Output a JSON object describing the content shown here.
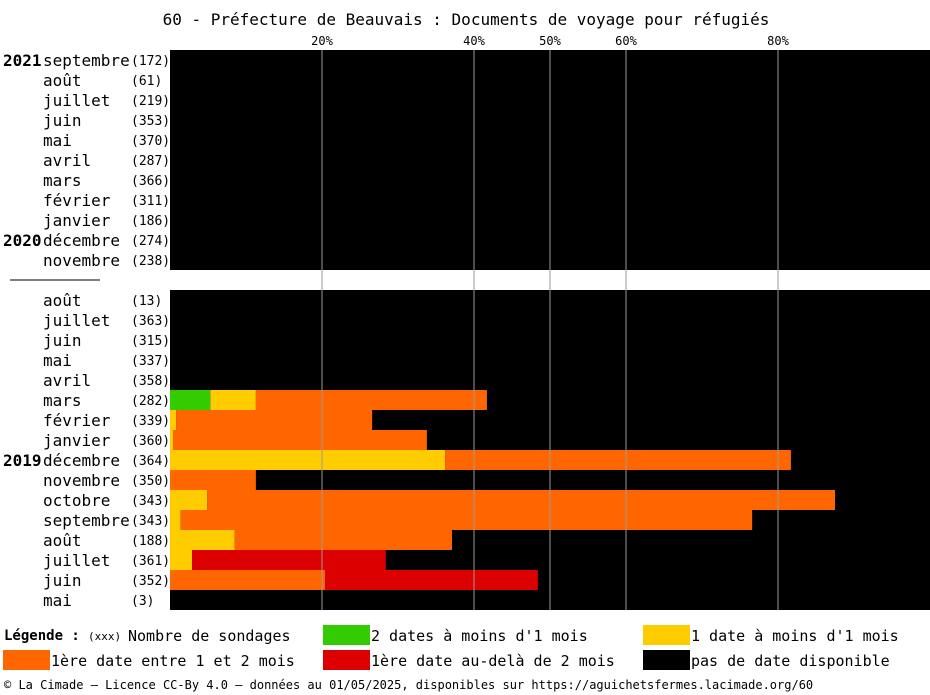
{
  "chart_data": {
    "type": "bar",
    "orientation": "horizontal",
    "stacked": true,
    "title": "60 - Préfecture de Beauvais : Documents de voyage pour réfugiés",
    "x_ticks": [
      "20%",
      "40%",
      "50%",
      "60%",
      "80%"
    ],
    "x_tick_values": [
      20,
      40,
      50,
      60,
      80
    ],
    "xlim": [
      0,
      100
    ],
    "grid": true,
    "colors": {
      "green": "#33cc00",
      "yellow": "#ffcc00",
      "orange": "#ff6600",
      "red": "#dd0000",
      "black": "#000000"
    },
    "groups": [
      {
        "year_label": "2021",
        "rows": [
          {
            "month": "septembre",
            "count": "(172)",
            "year": "2021",
            "segments": {
              "green": 0,
              "yellow": 0,
              "orange": 0,
              "red": 0
            }
          },
          {
            "month": "août",
            "count": "(61)",
            "year": "",
            "segments": {
              "green": 0,
              "yellow": 0,
              "orange": 0,
              "red": 0
            }
          },
          {
            "month": "juillet",
            "count": "(219)",
            "year": "",
            "segments": {
              "green": 0,
              "yellow": 0,
              "orange": 0,
              "red": 0
            }
          },
          {
            "month": "juin",
            "count": "(353)",
            "year": "",
            "segments": {
              "green": 0,
              "yellow": 0,
              "orange": 0,
              "red": 0
            }
          },
          {
            "month": "mai",
            "count": "(370)",
            "year": "",
            "segments": {
              "green": 0,
              "yellow": 0,
              "orange": 0,
              "red": 0
            }
          },
          {
            "month": "avril",
            "count": "(287)",
            "year": "",
            "segments": {
              "green": 0,
              "yellow": 0,
              "orange": 0,
              "red": 0
            }
          },
          {
            "month": "mars",
            "count": "(366)",
            "year": "",
            "segments": {
              "green": 0,
              "yellow": 0,
              "orange": 0,
              "red": 0
            }
          },
          {
            "month": "février",
            "count": "(311)",
            "year": "",
            "segments": {
              "green": 0,
              "yellow": 0,
              "orange": 0,
              "red": 0
            }
          },
          {
            "month": "janvier",
            "count": "(186)",
            "year": "",
            "segments": {
              "green": 0,
              "yellow": 0,
              "orange": 0,
              "red": 0
            }
          },
          {
            "month": "décembre",
            "count": "(274)",
            "year": "2020",
            "segments": {
              "green": 0,
              "yellow": 0,
              "orange": 0,
              "red": 0
            }
          },
          {
            "month": "novembre",
            "count": "(238)",
            "year": "",
            "segments": {
              "green": 0,
              "yellow": 0,
              "orange": 0,
              "red": 0
            }
          }
        ]
      },
      {
        "year_label": "",
        "rows": [
          {
            "month": "août",
            "count": "(13)",
            "year": "",
            "segments": {
              "green": 0,
              "yellow": 0,
              "orange": 0,
              "red": 0
            }
          },
          {
            "month": "juillet",
            "count": "(363)",
            "year": "",
            "segments": {
              "green": 0,
              "yellow": 0,
              "orange": 0,
              "red": 0
            }
          },
          {
            "month": "juin",
            "count": "(315)",
            "year": "",
            "segments": {
              "green": 0,
              "yellow": 0,
              "orange": 0,
              "red": 0
            }
          },
          {
            "month": "mai",
            "count": "(337)",
            "year": "",
            "segments": {
              "green": 0,
              "yellow": 0,
              "orange": 0,
              "red": 0
            }
          },
          {
            "month": "avril",
            "count": "(358)",
            "year": "",
            "segments": {
              "green": 0,
              "yellow": 0,
              "orange": 0,
              "red": 0
            }
          },
          {
            "month": "mars",
            "count": "(282)",
            "year": "",
            "segments": {
              "green": 5.3,
              "yellow": 6.0,
              "orange": 30.4,
              "red": 0
            }
          },
          {
            "month": "février",
            "count": "(339)",
            "year": "",
            "segments": {
              "green": 0,
              "yellow": 0.8,
              "orange": 25.8,
              "red": 0
            }
          },
          {
            "month": "janvier",
            "count": "(360)",
            "year": "",
            "segments": {
              "green": 0,
              "yellow": 0.4,
              "orange": 33.4,
              "red": 0
            }
          },
          {
            "month": "décembre",
            "count": "(364)",
            "year": "2019",
            "segments": {
              "green": 0,
              "yellow": 36.2,
              "orange": 45.5,
              "red": 0
            }
          },
          {
            "month": "novembre",
            "count": "(350)",
            "year": "",
            "segments": {
              "green": 0,
              "yellow": 0,
              "orange": 11.3,
              "red": 0
            }
          },
          {
            "month": "octobre",
            "count": "(343)",
            "year": "",
            "segments": {
              "green": 0,
              "yellow": 4.9,
              "orange": 82.6,
              "red": 0
            }
          },
          {
            "month": "septembre",
            "count": "(343)",
            "year": "",
            "segments": {
              "green": 0,
              "yellow": 1.4,
              "orange": 75.2,
              "red": 0
            }
          },
          {
            "month": "août",
            "count": "(188)",
            "year": "",
            "segments": {
              "green": 0,
              "yellow": 8.5,
              "orange": 28.6,
              "red": 0
            }
          },
          {
            "month": "juillet",
            "count": "(361)",
            "year": "",
            "segments": {
              "green": 0,
              "yellow": 2.9,
              "orange": 0,
              "red": 25.5
            }
          },
          {
            "month": "juin",
            "count": "(352)",
            "year": "",
            "segments": {
              "green": 0,
              "yellow": 0,
              "orange": 20.4,
              "red": 28.0
            }
          },
          {
            "month": "mai",
            "count": "(3)",
            "year": "",
            "segments": {
              "green": 0,
              "yellow": 0,
              "orange": 0,
              "red": 0
            }
          }
        ]
      }
    ]
  },
  "legend": {
    "title": "Légende :",
    "count_marker": "(xxx)",
    "count_label": "Nombre de sondages",
    "items": [
      {
        "label": "2 dates à moins d'1 mois",
        "color": "#33cc00"
      },
      {
        "label": "1 date à moins d'1 mois",
        "color": "#ffcc00"
      },
      {
        "label": "1ère date entre 1 et 2 mois",
        "color": "#ff6600"
      },
      {
        "label": "1ère date au-delà de 2 mois",
        "color": "#dd0000"
      },
      {
        "label": "pas de date disponible",
        "color": "#000000"
      }
    ]
  },
  "footer": "© La Cimade — Licence CC-By 4.0 — données au 01/05/2025, disponibles sur https://aguichetsfermes.lacimade.org/60"
}
